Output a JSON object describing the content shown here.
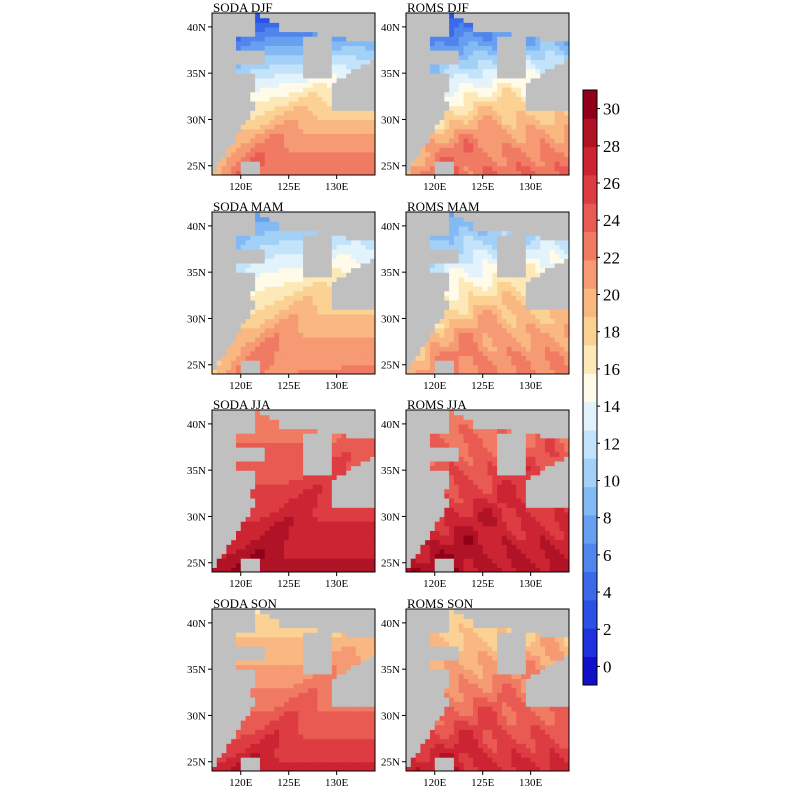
{
  "chart_data": {
    "type": "heatmap",
    "panels": [
      {
        "title": "SODA DJF",
        "dataset": "SODA",
        "season": "DJF"
      },
      {
        "title": "ROMS DJF",
        "dataset": "ROMS",
        "season": "DJF"
      },
      {
        "title": "SODA MAM",
        "dataset": "SODA",
        "season": "MAM"
      },
      {
        "title": "ROMS MAM",
        "dataset": "ROMS",
        "season": "MAM"
      },
      {
        "title": "SODA JJA",
        "dataset": "SODA",
        "season": "JJA"
      },
      {
        "title": "ROMS JJA",
        "dataset": "ROMS",
        "season": "JJA"
      },
      {
        "title": "SODA SON",
        "dataset": "SODA",
        "season": "SON"
      },
      {
        "title": "ROMS SON",
        "dataset": "ROMS",
        "season": "SON"
      }
    ],
    "x_ticks": [
      "120E",
      "125E",
      "130E"
    ],
    "y_ticks": [
      "25N",
      "30N",
      "35N",
      "40N"
    ],
    "x_range": [
      117,
      134
    ],
    "y_range": [
      24,
      41.5
    ],
    "colorbar": {
      "ticks": [
        0,
        2,
        4,
        6,
        8,
        10,
        12,
        14,
        16,
        18,
        20,
        22,
        24,
        26,
        28,
        30
      ],
      "range": [
        -1,
        31
      ],
      "colors": [
        "#1010c8",
        "#1e30e0",
        "#2a50e6",
        "#3a6ae8",
        "#4f85ec",
        "#67a0f0",
        "#84baf4",
        "#a3d0f7",
        "#c2e3fa",
        "#e3f3fc",
        "#fffbe8",
        "#fde9b8",
        "#fcd294",
        "#f9b882",
        "#f59a72",
        "#f07a62",
        "#e85a52",
        "#dd3c42",
        "#cc2432",
        "#b01226",
        "#900018"
      ]
    },
    "season_params": {
      "DJF": {
        "north": 3,
        "south": 23,
        "pow": 1.5
      },
      "MAM": {
        "north": 8,
        "south": 22,
        "pow": 1.5
      },
      "JJA": {
        "north": 22,
        "south": 28.5,
        "pow": 1.0
      },
      "SON": {
        "north": 17,
        "south": 27,
        "pow": 1.0
      }
    }
  }
}
